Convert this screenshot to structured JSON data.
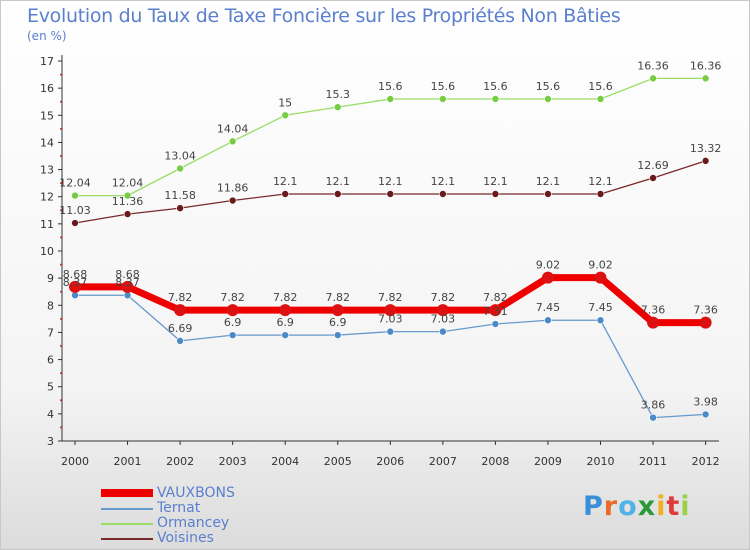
{
  "header": {
    "title": "Evolution du Taux de Taxe Foncière sur les Propriétés Non Bâties",
    "unit": "(en %)"
  },
  "logo": {
    "text": "Proxiti",
    "colors": [
      "#3a8fd8",
      "#e86a2a",
      "#4fb3e8",
      "#2a9a3a",
      "#f0b020",
      "#e03a3a",
      "#9ad04a"
    ]
  },
  "chart_data": {
    "type": "line",
    "title": "Evolution du Taux de Taxe Foncière sur les Propriétés Non Bâties",
    "ylabel": "(en %)",
    "xlabel": "",
    "ylim": [
      3,
      17
    ],
    "yticks": [
      3,
      4,
      5,
      6,
      7,
      8,
      9,
      10,
      11,
      12,
      13,
      14,
      15,
      16,
      17
    ],
    "x": [
      "2000",
      "2001",
      "2002",
      "2003",
      "2004",
      "2005",
      "2006",
      "2007",
      "2008",
      "2009",
      "2010",
      "2011",
      "2012"
    ],
    "series": [
      {
        "name": "VAUXBONS",
        "color": "#ee0000",
        "markerColor": "#dd1111",
        "width": 7,
        "radius": 6,
        "values": [
          8.68,
          8.68,
          7.82,
          7.82,
          7.82,
          7.82,
          7.82,
          7.82,
          7.82,
          9.02,
          9.02,
          7.36,
          7.36
        ],
        "labels": [
          "8.68",
          "8.68",
          "7.82",
          "7.82",
          "7.82",
          "7.82",
          "7.82",
          "7.82",
          "7.82",
          "9.02",
          "9.02",
          "7.36",
          "7.36"
        ]
      },
      {
        "name": "Ternat",
        "color": "#6699cc",
        "markerColor": "#4a8ac8",
        "width": 1.3,
        "radius": 3.5,
        "values": [
          8.37,
          8.37,
          6.69,
          6.9,
          6.9,
          6.9,
          7.03,
          7.03,
          7.31,
          7.45,
          7.45,
          3.86,
          3.98
        ],
        "labels": [
          "8.37",
          "8.37",
          "6.69",
          "6.9",
          "6.9",
          "6.9",
          "7.03",
          "7.03",
          "7.31",
          "7.45",
          "7.45",
          "3.86",
          "3.98"
        ]
      },
      {
        "name": "Ormancey",
        "color": "#99dd66",
        "markerColor": "#77cc44",
        "width": 1.3,
        "radius": 3.5,
        "values": [
          12.04,
          12.04,
          13.04,
          14.04,
          15,
          15.3,
          15.6,
          15.6,
          15.6,
          15.6,
          15.6,
          16.36,
          16.36
        ],
        "labels": [
          "12.04",
          "12.04",
          "13.04",
          "14.04",
          "15",
          "15.3",
          "15.6",
          "15.6",
          "15.6",
          "15.6",
          "15.6",
          "16.36",
          "16.36"
        ]
      },
      {
        "name": "Voisines",
        "color": "#7a2a2a",
        "markerColor": "#6a1a1a",
        "width": 1.3,
        "radius": 3.5,
        "values": [
          11.03,
          11.36,
          11.58,
          11.86,
          12.1,
          12.1,
          12.1,
          12.1,
          12.1,
          12.1,
          12.1,
          12.69,
          13.32
        ],
        "labels": [
          "11.03",
          "11.36",
          "11.58",
          "11.86",
          "12.1",
          "12.1",
          "12.1",
          "12.1",
          "12.1",
          "12.1",
          "12.1",
          "12.69",
          "13.32"
        ]
      }
    ],
    "grid": false,
    "legend": "bottom-left"
  }
}
